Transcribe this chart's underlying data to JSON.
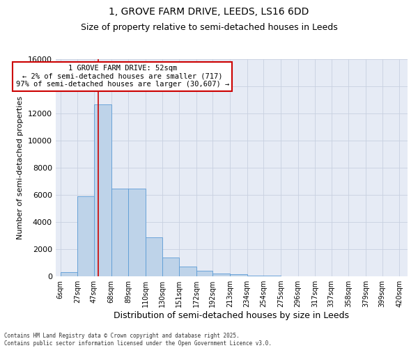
{
  "title_line1": "1, GROVE FARM DRIVE, LEEDS, LS16 6DD",
  "title_line2": "Size of property relative to semi-detached houses in Leeds",
  "xlabel": "Distribution of semi-detached houses by size in Leeds",
  "ylabel": "Number of semi-detached properties",
  "footer_line1": "Contains HM Land Registry data © Crown copyright and database right 2025.",
  "footer_line2": "Contains public sector information licensed under the Open Government Licence v3.0.",
  "annotation_title": "1 GROVE FARM DRIVE: 52sqm",
  "annotation_line1": "← 2% of semi-detached houses are smaller (717)",
  "annotation_line2": "97% of semi-detached houses are larger (30,607) →",
  "property_size": 52,
  "bar_left_edges": [
    6,
    27,
    47,
    68,
    89,
    110,
    130,
    151,
    172,
    192,
    213,
    234,
    254,
    275,
    296,
    317,
    337,
    358,
    379,
    399
  ],
  "bar_widths_plot": [
    21,
    20,
    21,
    21,
    21,
    20,
    21,
    21,
    20,
    21,
    21,
    20,
    21,
    21,
    21,
    20,
    21,
    21,
    20,
    21
  ],
  "bar_heights": [
    300,
    5900,
    12700,
    6500,
    6500,
    2900,
    1400,
    700,
    400,
    200,
    150,
    80,
    30,
    10,
    5,
    2,
    1,
    0,
    0,
    0
  ],
  "bar_color": "#bed3e9",
  "bar_edge_color": "#5b9bd5",
  "red_line_x": 52,
  "ylim": [
    0,
    16000
  ],
  "yticks": [
    0,
    2000,
    4000,
    6000,
    8000,
    10000,
    12000,
    14000,
    16000
  ],
  "x_tick_labels": [
    "6sqm",
    "27sqm",
    "47sqm",
    "68sqm",
    "89sqm",
    "110sqm",
    "130sqm",
    "151sqm",
    "172sqm",
    "192sqm",
    "213sqm",
    "234sqm",
    "254sqm",
    "275sqm",
    "296sqm",
    "317sqm",
    "337sqm",
    "358sqm",
    "379sqm",
    "399sqm",
    "420sqm"
  ],
  "x_tick_positions": [
    6,
    27,
    47,
    68,
    89,
    110,
    130,
    151,
    172,
    192,
    213,
    234,
    254,
    275,
    296,
    317,
    337,
    358,
    379,
    399,
    420
  ],
  "grid_color": "#c8d0e0",
  "bg_color": "#e6ebf5",
  "title_fontsize": 10,
  "subtitle_fontsize": 9,
  "annotation_box_color": "#ffffff",
  "annotation_box_edge_color": "#cc0000",
  "annotation_fontsize": 7.5
}
